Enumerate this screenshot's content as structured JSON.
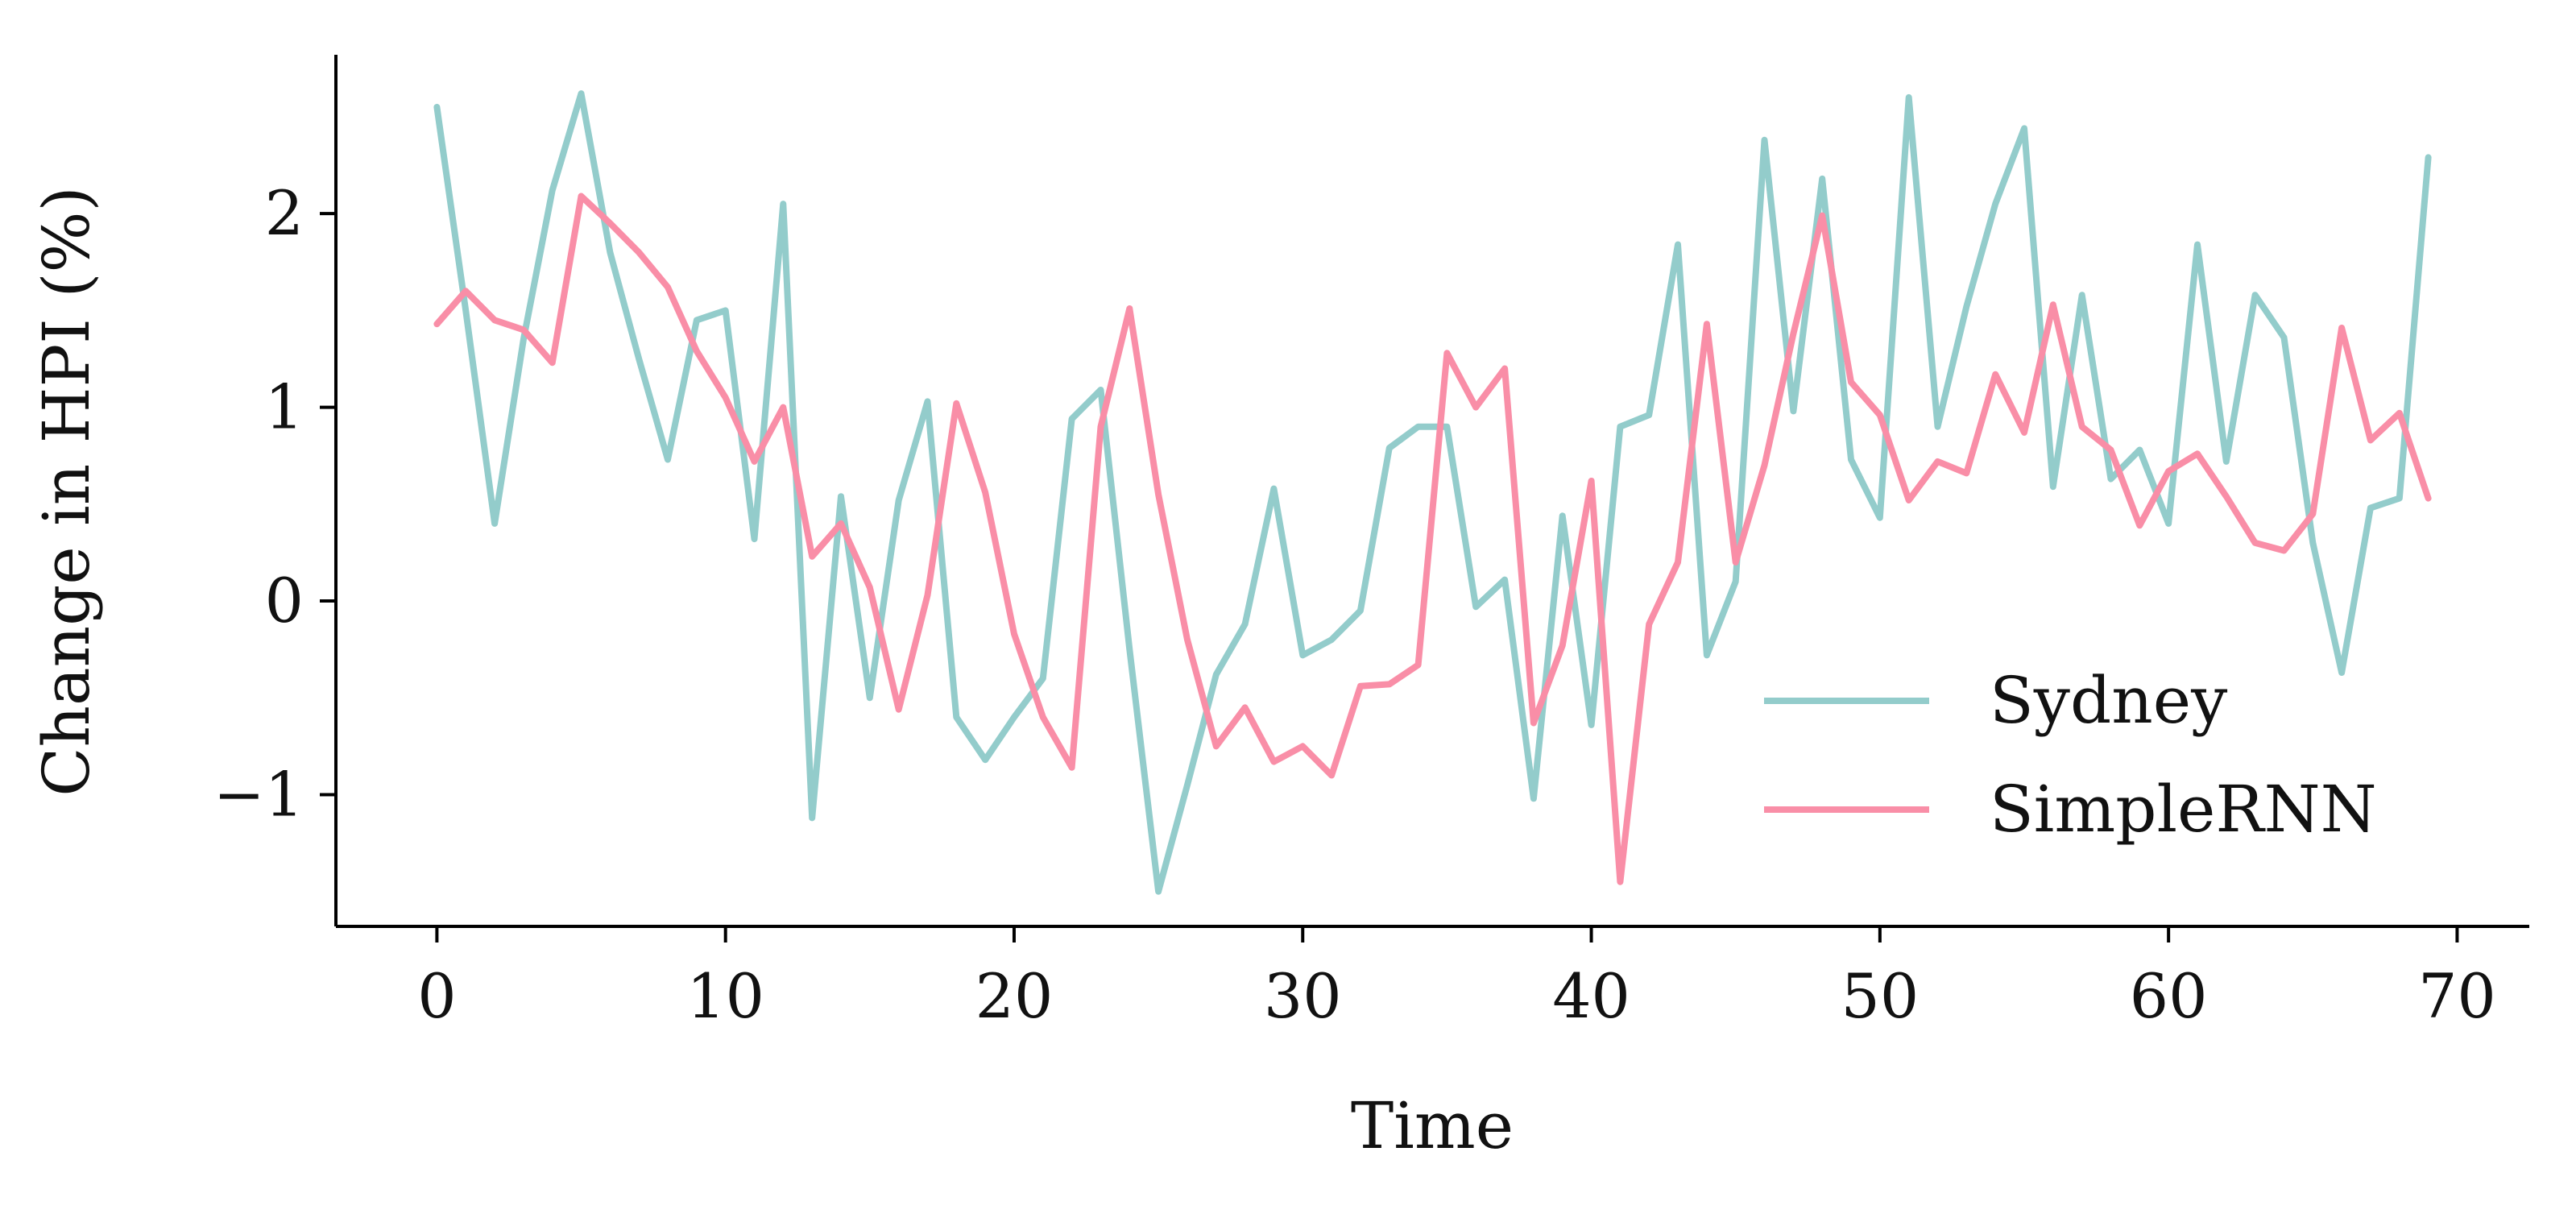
{
  "chart_data": {
    "type": "line",
    "title": "",
    "xlabel": "Time",
    "ylabel": "Change in HPI (%)",
    "xlim": [
      -3.5,
      72.5
    ],
    "ylim": [
      -1.68,
      2.82
    ],
    "xticks": [
      0,
      10,
      20,
      30,
      40,
      50,
      60,
      70
    ],
    "xtick_labels": [
      "0",
      "10",
      "20",
      "30",
      "40",
      "50",
      "60",
      "70"
    ],
    "yticks": [
      -1,
      0,
      1,
      2
    ],
    "ytick_labels": [
      "−1",
      "0",
      "1",
      "2"
    ],
    "grid": false,
    "legend_position": "lower-right",
    "x": [
      0,
      1,
      2,
      3,
      4,
      5,
      6,
      7,
      8,
      9,
      10,
      11,
      12,
      13,
      14,
      15,
      16,
      17,
      18,
      19,
      20,
      21,
      22,
      23,
      24,
      25,
      26,
      27,
      28,
      29,
      30,
      31,
      32,
      33,
      34,
      35,
      36,
      37,
      38,
      39,
      40,
      41,
      42,
      43,
      44,
      45,
      46,
      47,
      48,
      49,
      50,
      51,
      52,
      53,
      54,
      55,
      56,
      57,
      58,
      59,
      60,
      61,
      62,
      63,
      64,
      65,
      66,
      67,
      68,
      69
    ],
    "series": [
      {
        "name": "Sydney",
        "color": "#93cccb",
        "values": [
          2.55,
          1.5,
          0.4,
          1.35,
          2.12,
          2.62,
          1.8,
          1.25,
          0.73,
          1.45,
          1.5,
          0.32,
          2.05,
          -1.12,
          0.54,
          -0.5,
          0.52,
          1.03,
          -0.6,
          -0.82,
          -0.6,
          -0.4,
          0.94,
          1.09,
          -0.25,
          -1.5,
          -0.95,
          -0.38,
          -0.12,
          0.58,
          -0.28,
          -0.2,
          -0.05,
          0.79,
          0.9,
          0.9,
          -0.03,
          0.11,
          -1.02,
          0.44,
          -0.64,
          0.9,
          0.96,
          1.84,
          -0.28,
          0.1,
          2.38,
          0.98,
          2.18,
          0.73,
          0.43,
          2.6,
          0.9,
          1.52,
          2.05,
          2.44,
          0.59,
          1.58,
          0.63,
          0.78,
          0.4,
          1.84,
          0.72,
          1.58,
          1.36,
          0.3,
          -0.37,
          0.48,
          0.53,
          2.29
        ]
      },
      {
        "name": "SimpleRNN",
        "color": "#f98ea7",
        "values": [
          1.43,
          1.6,
          1.45,
          1.4,
          1.23,
          2.09,
          1.95,
          1.8,
          1.62,
          1.29,
          1.05,
          0.72,
          1.0,
          0.23,
          0.4,
          0.07,
          -0.56,
          0.03,
          1.02,
          0.56,
          -0.17,
          -0.6,
          -0.86,
          0.9,
          1.51,
          0.55,
          -0.2,
          -0.75,
          -0.55,
          -0.83,
          -0.75,
          -0.9,
          -0.44,
          -0.43,
          -0.33,
          1.28,
          1.0,
          1.2,
          -0.63,
          -0.23,
          0.62,
          -1.45,
          -0.12,
          0.2,
          1.43,
          0.2,
          0.7,
          1.38,
          1.99,
          1.13,
          0.96,
          0.52,
          0.72,
          0.66,
          1.17,
          0.87,
          1.53,
          0.9,
          0.78,
          0.39,
          0.67,
          0.76,
          0.54,
          0.3,
          0.26,
          0.45,
          1.41,
          0.83,
          0.97,
          0.53
        ]
      }
    ]
  }
}
